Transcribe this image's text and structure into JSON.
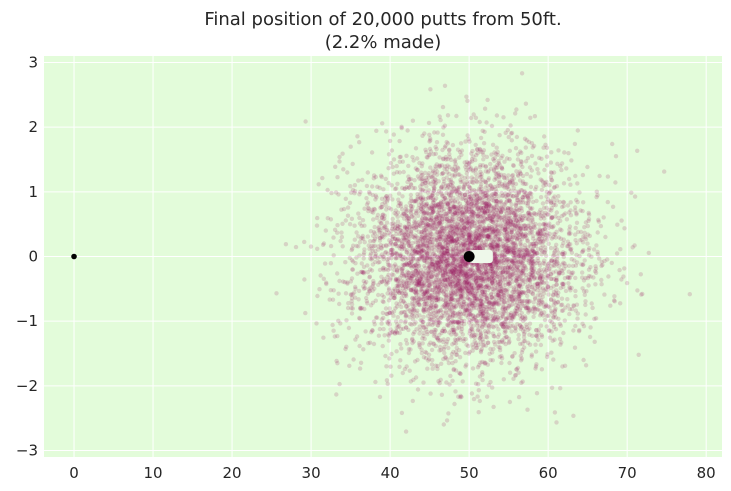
{
  "chart_data": {
    "type": "scatter",
    "title": "Final position of 20,000 putts from 50ft.",
    "subtitle": "(2.2% made)",
    "xlabel": "",
    "ylabel": "",
    "xlim": [
      -3.8,
      82
    ],
    "ylim": [
      -3.1,
      3.1
    ],
    "x_ticks": [
      0,
      10,
      20,
      30,
      40,
      50,
      60,
      70,
      80
    ],
    "y_ticks": [
      -3,
      -2,
      -1,
      0,
      1,
      2,
      3
    ],
    "grid": true,
    "background_color": "#e3fcda",
    "grid_color": "#ffffff",
    "total_putts": 20000,
    "made_percent": 2.2,
    "putt_distance_ft": 50,
    "putt_cloud": {
      "color": "#9b1a63",
      "center_x": 50,
      "center_y": 0,
      "x_std": 7.0,
      "y_std": 0.78,
      "point_alpha": 0.18
    },
    "markers": [
      {
        "name": "tee-point",
        "x": 0,
        "y": 0,
        "color": "#000000"
      },
      {
        "name": "hole-point",
        "x": 50,
        "y": 0,
        "color": "#000000"
      }
    ],
    "made_region": {
      "x_start": 50,
      "x_end": 53,
      "y_halfwidth": 0.1,
      "color": "#eef8ea"
    }
  }
}
